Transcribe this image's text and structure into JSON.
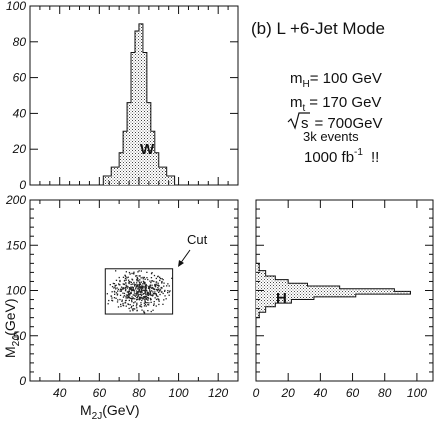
{
  "annotations": {
    "mode_prefix": "(b) L",
    "mode_suffix": "+6-Jet Mode",
    "mh_label": "m",
    "mh_sub": "H",
    "mh_value": "= 100 GeV",
    "mt_label": "m",
    "mt_sub": "t",
    "mt_value": "= 170 GeV",
    "sqrts_label": "s",
    "sqrts_value": "= 700GeV",
    "events": "3k events",
    "lumi_value": "1000 fb",
    "lumi_exp": "-1",
    "lumi_suffix": "!!",
    "w_label": "W",
    "h_label": "H",
    "cut_label": "Cut"
  },
  "chart_data": [
    {
      "type": "bar",
      "name": "top-histogram",
      "xlim": [
        25,
        130
      ],
      "ylim": [
        0,
        100
      ],
      "yticks": [
        0,
        20,
        40,
        60,
        80,
        100
      ],
      "bin_edges": [
        62,
        66,
        70,
        72,
        74,
        76,
        78,
        80,
        82,
        84,
        86,
        88,
        90,
        94,
        98
      ],
      "values": [
        5,
        10,
        18,
        30,
        46,
        74,
        86,
        90,
        74,
        46,
        30,
        18,
        10,
        5
      ]
    },
    {
      "type": "scatter",
      "name": "main-scatter",
      "xlabel": "M",
      "xlabel_sub": "2J",
      "xlabel_unit": "(GeV)",
      "ylabel": "M",
      "ylabel_sub": "2J",
      "ylabel_unit": "(GeV)",
      "xlim": [
        25,
        130
      ],
      "ylim": [
        0,
        200
      ],
      "xticks": [
        40,
        60,
        80,
        100,
        120
      ],
      "yticks": [
        0,
        50,
        100,
        150,
        200
      ],
      "cut_box": {
        "x": [
          63,
          97
        ],
        "y": [
          74,
          124
        ]
      },
      "center": [
        80,
        100
      ]
    },
    {
      "type": "bar",
      "name": "right-histogram",
      "orientation": "horizontal",
      "xlim": [
        0,
        110
      ],
      "ylim": [
        0,
        200
      ],
      "xticks": [
        0,
        20,
        40,
        60,
        80,
        100
      ],
      "bin_edges": [
        70,
        76,
        82,
        86,
        90,
        93,
        96,
        99,
        102,
        105,
        108,
        112,
        116,
        122,
        130
      ],
      "values": [
        2,
        6,
        12,
        22,
        36,
        62,
        96,
        86,
        52,
        32,
        20,
        12,
        6,
        2
      ]
    }
  ]
}
